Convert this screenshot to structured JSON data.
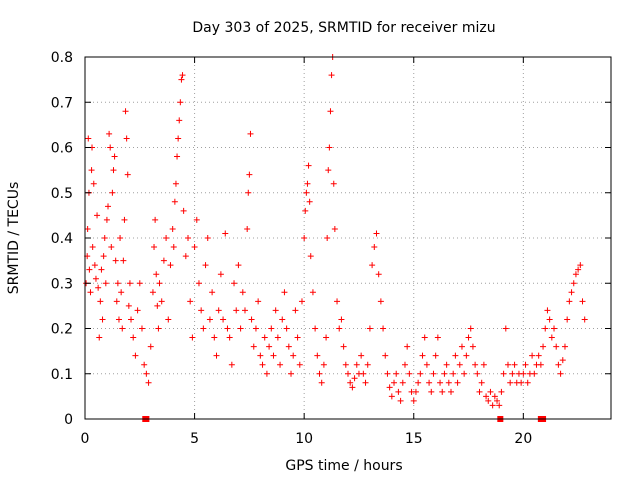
{
  "chart_data": {
    "type": "scatter",
    "title": "Day 303 of 2025, SRMTID for receiver mizu",
    "xlabel": "GPS time / hours",
    "ylabel": "SRMTID / TECUs",
    "xlim": [
      0,
      24
    ],
    "ylim": [
      0,
      0.8
    ],
    "x_ticks": [
      0,
      5,
      10,
      15,
      20
    ],
    "x_tick_labels": [
      "0",
      "5",
      "10",
      "15",
      "20"
    ],
    "y_ticks": [
      0,
      0.1,
      0.2,
      0.3,
      0.4,
      0.5,
      0.6,
      0.7,
      0.8
    ],
    "y_tick_labels": [
      "0",
      "0.1",
      "0.2",
      "0.3",
      "0.4",
      "0.5",
      "0.6",
      "0.7",
      "0.8"
    ],
    "grid": true,
    "marker": "+",
    "color": "#ff0000",
    "series": [
      {
        "name": "SRMTID",
        "points": [
          [
            0.05,
            0.3
          ],
          [
            0.1,
            0.36
          ],
          [
            0.12,
            0.42
          ],
          [
            0.15,
            0.62
          ],
          [
            0.18,
            0.5
          ],
          [
            0.2,
            0.33
          ],
          [
            0.25,
            0.28
          ],
          [
            0.3,
            0.55
          ],
          [
            0.32,
            0.6
          ],
          [
            0.35,
            0.38
          ],
          [
            0.4,
            0.52
          ],
          [
            0.45,
            0.34
          ],
          [
            0.5,
            0.31
          ],
          [
            0.55,
            0.45
          ],
          [
            0.6,
            0.29
          ],
          [
            0.65,
            0.18
          ],
          [
            0.7,
            0.26
          ],
          [
            0.75,
            0.33
          ],
          [
            0.8,
            0.22
          ],
          [
            0.85,
            0.36
          ],
          [
            0.9,
            0.4
          ],
          [
            0.95,
            0.3
          ],
          [
            1.0,
            0.44
          ],
          [
            1.05,
            0.47
          ],
          [
            1.1,
            0.63
          ],
          [
            1.15,
            0.6
          ],
          [
            1.2,
            0.38
          ],
          [
            1.25,
            0.5
          ],
          [
            1.3,
            0.55
          ],
          [
            1.35,
            0.58
          ],
          [
            1.4,
            0.35
          ],
          [
            1.45,
            0.26
          ],
          [
            1.5,
            0.3
          ],
          [
            1.55,
            0.22
          ],
          [
            1.6,
            0.4
          ],
          [
            1.65,
            0.28
          ],
          [
            1.7,
            0.2
          ],
          [
            1.75,
            0.35
          ],
          [
            1.8,
            0.44
          ],
          [
            1.85,
            0.68
          ],
          [
            1.9,
            0.62
          ],
          [
            1.95,
            0.54
          ],
          [
            2.0,
            0.25
          ],
          [
            2.05,
            0.3
          ],
          [
            2.1,
            0.22
          ],
          [
            2.2,
            0.18
          ],
          [
            2.3,
            0.14
          ],
          [
            2.4,
            0.24
          ],
          [
            2.5,
            0.3
          ],
          [
            2.6,
            0.2
          ],
          [
            2.7,
            0.12
          ],
          [
            2.8,
            0.1
          ],
          [
            2.9,
            0.08
          ],
          [
            3.0,
            0.16
          ],
          [
            3.1,
            0.28
          ],
          [
            3.15,
            0.38
          ],
          [
            3.2,
            0.44
          ],
          [
            3.25,
            0.32
          ],
          [
            3.3,
            0.25
          ],
          [
            3.35,
            0.2
          ],
          [
            3.4,
            0.3
          ],
          [
            3.5,
            0.26
          ],
          [
            3.6,
            0.35
          ],
          [
            3.7,
            0.4
          ],
          [
            3.8,
            0.22
          ],
          [
            3.9,
            0.34
          ],
          [
            4.0,
            0.42
          ],
          [
            4.05,
            0.38
          ],
          [
            4.1,
            0.48
          ],
          [
            4.15,
            0.52
          ],
          [
            4.2,
            0.58
          ],
          [
            4.25,
            0.62
          ],
          [
            4.3,
            0.66
          ],
          [
            4.35,
            0.7
          ],
          [
            4.4,
            0.75
          ],
          [
            4.45,
            0.76
          ],
          [
            4.5,
            0.46
          ],
          [
            4.6,
            0.36
          ],
          [
            4.7,
            0.4
          ],
          [
            4.8,
            0.26
          ],
          [
            4.9,
            0.18
          ],
          [
            5.0,
            0.38
          ],
          [
            5.1,
            0.44
          ],
          [
            5.2,
            0.3
          ],
          [
            5.3,
            0.24
          ],
          [
            5.4,
            0.2
          ],
          [
            5.5,
            0.34
          ],
          [
            5.6,
            0.4
          ],
          [
            5.7,
            0.22
          ],
          [
            5.8,
            0.28
          ],
          [
            5.9,
            0.18
          ],
          [
            6.0,
            0.14
          ],
          [
            6.1,
            0.24
          ],
          [
            6.2,
            0.32
          ],
          [
            6.3,
            0.22
          ],
          [
            6.4,
            0.41
          ],
          [
            6.5,
            0.2
          ],
          [
            6.6,
            0.18
          ],
          [
            6.7,
            0.12
          ],
          [
            6.8,
            0.3
          ],
          [
            6.9,
            0.24
          ],
          [
            7.0,
            0.34
          ],
          [
            7.1,
            0.2
          ],
          [
            7.2,
            0.28
          ],
          [
            7.3,
            0.24
          ],
          [
            7.4,
            0.42
          ],
          [
            7.45,
            0.5
          ],
          [
            7.5,
            0.54
          ],
          [
            7.55,
            0.63
          ],
          [
            7.6,
            0.22
          ],
          [
            7.7,
            0.16
          ],
          [
            7.8,
            0.2
          ],
          [
            7.9,
            0.26
          ],
          [
            8.0,
            0.14
          ],
          [
            8.1,
            0.12
          ],
          [
            8.2,
            0.18
          ],
          [
            8.3,
            0.1
          ],
          [
            8.4,
            0.16
          ],
          [
            8.5,
            0.2
          ],
          [
            8.6,
            0.14
          ],
          [
            8.7,
            0.24
          ],
          [
            8.8,
            0.18
          ],
          [
            8.9,
            0.12
          ],
          [
            9.0,
            0.22
          ],
          [
            9.1,
            0.28
          ],
          [
            9.2,
            0.2
          ],
          [
            9.3,
            0.16
          ],
          [
            9.4,
            0.1
          ],
          [
            9.5,
            0.14
          ],
          [
            9.6,
            0.24
          ],
          [
            9.7,
            0.18
          ],
          [
            9.8,
            0.12
          ],
          [
            9.9,
            0.26
          ],
          [
            10.0,
            0.4
          ],
          [
            10.05,
            0.46
          ],
          [
            10.1,
            0.5
          ],
          [
            10.15,
            0.52
          ],
          [
            10.2,
            0.56
          ],
          [
            10.25,
            0.48
          ],
          [
            10.3,
            0.36
          ],
          [
            10.4,
            0.28
          ],
          [
            10.5,
            0.2
          ],
          [
            10.6,
            0.14
          ],
          [
            10.7,
            0.1
          ],
          [
            10.8,
            0.08
          ],
          [
            10.9,
            0.12
          ],
          [
            11.0,
            0.18
          ],
          [
            11.05,
            0.4
          ],
          [
            11.1,
            0.55
          ],
          [
            11.15,
            0.6
          ],
          [
            11.2,
            0.68
          ],
          [
            11.25,
            0.76
          ],
          [
            11.3,
            0.8
          ],
          [
            11.35,
            0.52
          ],
          [
            11.4,
            0.42
          ],
          [
            11.5,
            0.26
          ],
          [
            11.6,
            0.2
          ],
          [
            11.7,
            0.22
          ],
          [
            11.8,
            0.16
          ],
          [
            11.9,
            0.12
          ],
          [
            12.0,
            0.1
          ],
          [
            12.1,
            0.08
          ],
          [
            12.2,
            0.07
          ],
          [
            12.3,
            0.09
          ],
          [
            12.4,
            0.12
          ],
          [
            12.5,
            0.1
          ],
          [
            12.6,
            0.14
          ],
          [
            12.7,
            0.1
          ],
          [
            12.8,
            0.08
          ],
          [
            12.9,
            0.12
          ],
          [
            13.0,
            0.2
          ],
          [
            13.1,
            0.34
          ],
          [
            13.2,
            0.38
          ],
          [
            13.3,
            0.41
          ],
          [
            13.4,
            0.32
          ],
          [
            13.5,
            0.26
          ],
          [
            13.6,
            0.2
          ],
          [
            13.7,
            0.14
          ],
          [
            13.8,
            0.1
          ],
          [
            13.9,
            0.07
          ],
          [
            14.0,
            0.05
          ],
          [
            14.1,
            0.08
          ],
          [
            14.2,
            0.1
          ],
          [
            14.3,
            0.06
          ],
          [
            14.4,
            0.04
          ],
          [
            14.5,
            0.08
          ],
          [
            14.6,
            0.12
          ],
          [
            14.7,
            0.16
          ],
          [
            14.8,
            0.1
          ],
          [
            14.9,
            0.06
          ],
          [
            15.0,
            0.04
          ],
          [
            15.1,
            0.06
          ],
          [
            15.2,
            0.08
          ],
          [
            15.3,
            0.1
          ],
          [
            15.4,
            0.14
          ],
          [
            15.5,
            0.18
          ],
          [
            15.6,
            0.12
          ],
          [
            15.7,
            0.08
          ],
          [
            15.8,
            0.06
          ],
          [
            15.9,
            0.1
          ],
          [
            16.0,
            0.14
          ],
          [
            16.1,
            0.18
          ],
          [
            16.2,
            0.08
          ],
          [
            16.3,
            0.06
          ],
          [
            16.4,
            0.1
          ],
          [
            16.5,
            0.12
          ],
          [
            16.6,
            0.08
          ],
          [
            16.7,
            0.06
          ],
          [
            16.8,
            0.1
          ],
          [
            16.9,
            0.14
          ],
          [
            17.0,
            0.08
          ],
          [
            17.1,
            0.12
          ],
          [
            17.2,
            0.16
          ],
          [
            17.3,
            0.1
          ],
          [
            17.4,
            0.14
          ],
          [
            17.5,
            0.18
          ],
          [
            17.6,
            0.2
          ],
          [
            17.7,
            0.16
          ],
          [
            17.8,
            0.12
          ],
          [
            17.9,
            0.1
          ],
          [
            18.0,
            0.06
          ],
          [
            18.1,
            0.08
          ],
          [
            18.2,
            0.12
          ],
          [
            18.3,
            0.05
          ],
          [
            18.4,
            0.04
          ],
          [
            18.5,
            0.06
          ],
          [
            18.6,
            0.03
          ],
          [
            18.7,
            0.05
          ],
          [
            18.8,
            0.04
          ],
          [
            18.9,
            0.03
          ],
          [
            19.0,
            0.06
          ],
          [
            19.1,
            0.1
          ],
          [
            19.2,
            0.2
          ],
          [
            19.3,
            0.12
          ],
          [
            19.4,
            0.08
          ],
          [
            19.5,
            0.1
          ],
          [
            19.6,
            0.12
          ],
          [
            19.7,
            0.08
          ],
          [
            19.8,
            0.1
          ],
          [
            19.9,
            0.08
          ],
          [
            20.0,
            0.1
          ],
          [
            20.1,
            0.12
          ],
          [
            20.2,
            0.08
          ],
          [
            20.3,
            0.1
          ],
          [
            20.4,
            0.14
          ],
          [
            20.5,
            0.1
          ],
          [
            20.6,
            0.12
          ],
          [
            20.7,
            0.14
          ],
          [
            20.8,
            0.12
          ],
          [
            20.9,
            0.16
          ],
          [
            21.0,
            0.2
          ],
          [
            21.1,
            0.24
          ],
          [
            21.2,
            0.22
          ],
          [
            21.3,
            0.18
          ],
          [
            21.4,
            0.2
          ],
          [
            21.5,
            0.16
          ],
          [
            21.6,
            0.12
          ],
          [
            21.7,
            0.1
          ],
          [
            21.8,
            0.13
          ],
          [
            21.9,
            0.16
          ],
          [
            22.0,
            0.22
          ],
          [
            22.1,
            0.26
          ],
          [
            22.2,
            0.28
          ],
          [
            22.3,
            0.3
          ],
          [
            22.4,
            0.32
          ],
          [
            22.5,
            0.33
          ],
          [
            22.6,
            0.34
          ],
          [
            22.7,
            0.26
          ],
          [
            22.8,
            0.22
          ]
        ]
      }
    ],
    "zero_markers": [
      2.75,
      2.8,
      18.95,
      20.8,
      20.9
    ]
  }
}
